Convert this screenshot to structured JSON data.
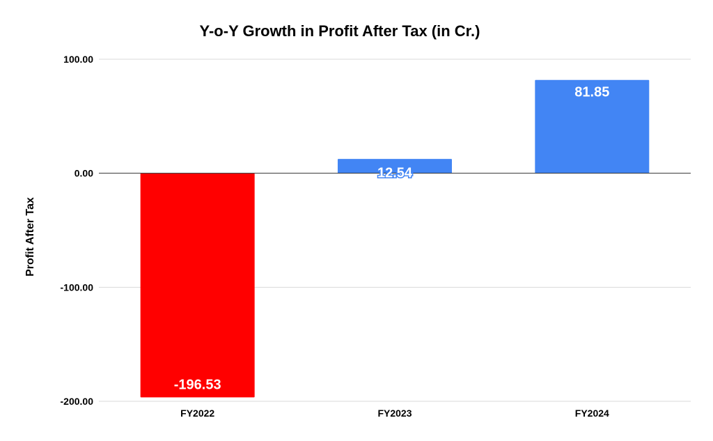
{
  "chart_data": {
    "type": "bar",
    "title": "Y-o-Y Growth in Profit After Tax (in Cr.)",
    "xlabel": "",
    "ylabel": "Profit After Tax",
    "categories": [
      "FY2022",
      "FY2023",
      "FY2024"
    ],
    "values": [
      -196.53,
      12.54,
      81.85
    ],
    "value_labels": [
      "-196.53",
      "12.54",
      "81.85"
    ],
    "ylim": [
      -200,
      100
    ],
    "yticks": [
      100,
      0,
      -100,
      -200
    ],
    "ytick_labels": [
      "100.00",
      "0.00",
      "-100.00",
      "-200.00"
    ],
    "grid": true,
    "legend": "none",
    "colors": {
      "positive": "#4285f4",
      "negative": "#ff0000",
      "grid": "#d9d9d9",
      "baseline": "#333333"
    }
  }
}
